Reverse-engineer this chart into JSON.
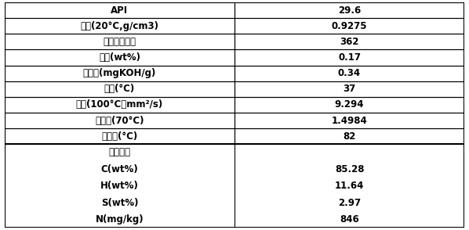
{
  "top_rows": [
    {
      "label": "API",
      "value": "29.6"
    },
    {
      "label": "密度(20°C,g/cm3)",
      "value": "0.9275"
    },
    {
      "label": "相对分子质量",
      "value": "362"
    },
    {
      "label": "疫点(wt%)",
      "value": "0.17"
    },
    {
      "label": "总酸值(mgKOH/g)",
      "value": "0.34"
    },
    {
      "label": "冻点(°C)",
      "value": "37"
    },
    {
      "label": "精度(100°C，mm²/s)",
      "value": "9.294"
    },
    {
      "label": "折射率(70°C)",
      "value": "1.4984"
    },
    {
      "label": "该接点(°C)",
      "value": "82"
    }
  ],
  "bottom_header": "元素分析",
  "bottom_rows": [
    {
      "label": "C(wt%)",
      "value": "85.28"
    },
    {
      "label": "H(wt%)",
      "value": "11.64"
    },
    {
      "label": "S(wt%)",
      "value": "2.97"
    },
    {
      "label": "N(mg/kg)",
      "value": "846"
    }
  ],
  "col_split": 0.5,
  "border_color": "#000000",
  "text_color": "#000000",
  "font_size": 8.5,
  "font_size_small": 8.0
}
